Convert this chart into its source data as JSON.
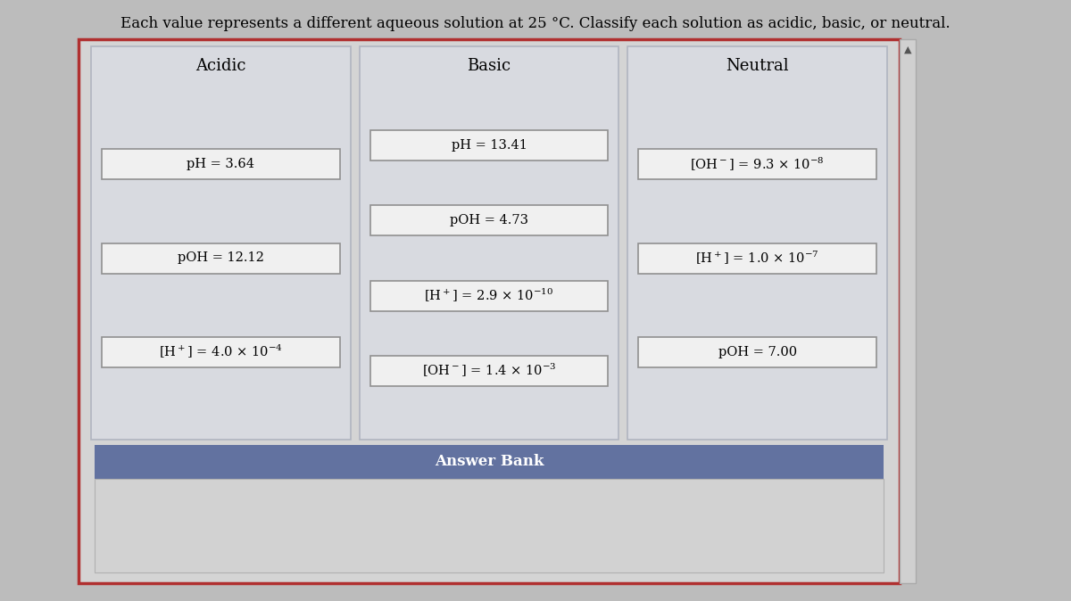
{
  "title": "Each value represents a different aqueous solution at 25 °C. Classify each solution as acidic, basic, or neutral.",
  "title_fontsize": 12,
  "columns": [
    "Acidic",
    "Basic",
    "Neutral"
  ],
  "col_header_fontsize": 13,
  "outer_box_edgecolor": "#b03030",
  "outer_bg": "#d4d4d4",
  "col_bg": "#d8dae0",
  "col_border": "#b0b4c0",
  "item_box_bg": "#f0f0f0",
  "item_box_border": "#909090",
  "answer_bank_bg": "#6272a0",
  "answer_bank_text": "#ffffff",
  "answer_bank_label": "Answer Bank",
  "answer_bank_fontsize": 12,
  "fig_bg": "#bcbcbc",
  "scrollbar_bg": "#d0d0d0",
  "acidic_items": [
    "pH = 3.64",
    "pOH = 12.12",
    "[H$^+$] = 4.0 × 10$^{-4}$"
  ],
  "basic_items": [
    "pH = 13.41",
    "pOH = 4.73",
    "[H$^+$] = 2.9 × 10$^{-10}$",
    "[OH$^-$] = 1.4 × 10$^{-3}$"
  ],
  "neutral_items": [
    "[OH$^-$] = 9.3 × 10$^{-8}$",
    "[H$^+$] = 1.0 × 10$^{-7}$",
    "pOH = 7.00"
  ]
}
